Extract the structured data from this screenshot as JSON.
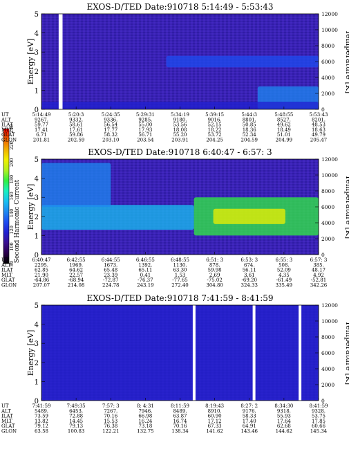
{
  "colorbar": {
    "label": "Second Harmonic Current",
    "ticks": [
      "80",
      "100",
      "120",
      "140",
      "160",
      "180",
      "200",
      "220",
      "240"
    ],
    "stops": [
      "#000000",
      "#2a004a",
      "#3a1090",
      "#2020d0",
      "#1e4cf0",
      "#1e88f0",
      "#18c0f0",
      "#18f0c0",
      "#30f040",
      "#b0f020",
      "#f0f000",
      "#f0b000",
      "#f06000",
      "#f00000"
    ]
  },
  "panels": [
    {
      "title": "EXOS-D/TED   Date:910718  5:14:49 - 5:53:43",
      "ylabel": "Energy [eV]",
      "y2label": "Temperature [K]",
      "yticks": [
        "0",
        "1",
        "2",
        "3",
        "4",
        "5"
      ],
      "y2ticks": [
        "0",
        "2000",
        "4000",
        "6000",
        "8000",
        "10000",
        "12000"
      ],
      "rows": {
        "labels": [
          "UT",
          "ALT",
          "ILAT",
          "MLT",
          "GLAT",
          "GLON"
        ],
        "cols": [
          [
            "5:14:49",
            "9267.",
            "59.77",
            "17.41",
            "6.71",
            "201.81"
          ],
          [
            "5:20:3",
            "9332.",
            "58.61",
            "17.61",
            "59.86",
            "202.59"
          ],
          [
            "5:24:35",
            "9336.",
            "56.54",
            "17.77",
            "58.32",
            "203.10"
          ],
          [
            "5:29:31",
            "9285.",
            "55.00",
            "17.93",
            "56.71",
            "203.54"
          ],
          [
            "5:34:19",
            "9180.",
            "53.56",
            "18.08",
            "55.20",
            "203.91"
          ],
          [
            "5:39:15",
            "9016.",
            "52.15",
            "18.22",
            "53.72",
            "204.25"
          ],
          [
            "5:44:3",
            "8801.",
            "50.85",
            "18.36",
            "52.34",
            "204.59"
          ],
          [
            "5:48:55",
            "8527.",
            "49.62",
            "18.49",
            "51.01",
            "204.99"
          ],
          [
            "5:53:43",
            "8201.",
            "48.53",
            "18.63",
            "49.79",
            "205.47"
          ]
        ]
      }
    },
    {
      "title": "EXOS-D/TED   Date:910718  6:40:47 - 6:57: 3",
      "ylabel": "Energy [eV]",
      "y2label": "Temperature [K]",
      "yticks": [
        "0",
        "1",
        "2",
        "3",
        "4",
        "5"
      ],
      "y2ticks": [
        "0",
        "2000",
        "4000",
        "6000",
        "8000",
        "10000",
        "12000"
      ],
      "rows": {
        "labels": [
          "UT",
          "ALT",
          "ILAT",
          "MLT",
          "GLAT",
          "GLON"
        ],
        "cols": [
          [
            "6:40:47",
            "2295.",
            "62.85",
            "21.90",
            "-64.86",
            "207.07"
          ],
          [
            "6:42:55",
            "1969.",
            "64.62",
            "22.57",
            "-68.94",
            "214.08"
          ],
          [
            "6:44:55",
            "1673.",
            "65.48",
            "23.39",
            "-72.87",
            "224.78"
          ],
          [
            "6:46:55",
            "1392.",
            "65.11",
            "0.41",
            "-76.37",
            "243.19"
          ],
          [
            "6:48:55",
            "1130.",
            "63.30",
            "1.53",
            "-77.65",
            "272.40"
          ],
          [
            "6:51: 3",
            "878.",
            "59.98",
            "2.69",
            "-75.02",
            "304.80"
          ],
          [
            "6:53: 3",
            "674.",
            "56.11",
            "3.61",
            "-69.20",
            "324.33"
          ],
          [
            "6:55: 3",
            "508.",
            "52.09",
            "4.35",
            "-61.49",
            "335.49"
          ],
          [
            "6:57: 3",
            "385.",
            "48.17",
            "4.92",
            "-52.81",
            "342.26"
          ]
        ]
      }
    },
    {
      "title": "EXOS-D/TED   Date:910718  7:41:59 - 8:41:59",
      "ylabel": "Energy [eV]",
      "y2label": "Temperature [K]",
      "yticks": [
        "0",
        "1",
        "2",
        "3",
        "4",
        "5"
      ],
      "y2ticks": [
        "0",
        "2000",
        "4000",
        "6000",
        "8000",
        "10000",
        "12000"
      ],
      "rows": {
        "labels": [
          "UT",
          "ALT",
          "ILAT",
          "MLT",
          "GLAT",
          "GLON"
        ],
        "cols": [
          [
            "7:41:59",
            "5489.",
            "73.59",
            "13.82",
            "79.12",
            "63.58"
          ],
          [
            "7:49:35",
            "6453.",
            "72.88",
            "14.45",
            "79.13",
            "100.83"
          ],
          [
            "7:57: 3",
            "7267.",
            "70.16",
            "15.53",
            "76.38",
            "122.21"
          ],
          [
            "8: 4:31",
            "7946.",
            "66.98",
            "16.24",
            "73.18",
            "132.75"
          ],
          [
            "8:11:59",
            "8489.",
            "63.87",
            "16.74",
            "70.16",
            "138.34"
          ],
          [
            "8:19:43",
            "8910.",
            "60.90",
            "17.12",
            "67.33",
            "141.62"
          ],
          [
            "8:27: 2",
            "9176.",
            "58.33",
            "17.40",
            "64.91",
            "143.46"
          ],
          [
            "8:34:30",
            "9318.",
            "55.93",
            "17.64",
            "62.68",
            "144.62"
          ],
          [
            "8:41:59",
            "9328.",
            "53.75",
            "17.85",
            "60.66",
            "145.34"
          ]
        ]
      }
    }
  ],
  "chart_data": [
    {
      "type": "heatmap",
      "title": "EXOS-D/TED   Date:910718  5:14:49 - 5:53:43",
      "ylabel": "Energy [eV]",
      "y2label": "Temperature [K]",
      "ylim": [
        0,
        5
      ],
      "y2lim": [
        0,
        12000
      ],
      "x": [
        "5:14:49",
        "5:20:3",
        "5:24:35",
        "5:29:31",
        "5:34:19",
        "5:39:15",
        "5:44:3",
        "5:48:55",
        "5:53:43"
      ],
      "bands": [
        {
          "x": [
            0.45,
            1.0
          ],
          "y": [
            2.2,
            2.8
          ],
          "level": 0.3
        },
        {
          "x": [
            0.78,
            1.0
          ],
          "y": [
            0.0,
            1.2
          ],
          "level": 0.35
        },
        {
          "x": [
            0.0,
            1.0
          ],
          "y": [
            0.0,
            0.4
          ],
          "level": 0.25
        }
      ],
      "gaps": [
        {
          "x": [
            0.062,
            0.076
          ],
          "y": [
            0,
            5
          ]
        }
      ],
      "colorbar": {
        "label": "Second Harmonic Current",
        "range": [
          80,
          240
        ]
      }
    },
    {
      "type": "heatmap",
      "title": "EXOS-D/TED   Date:910718  6:40:47 - 6:57: 3",
      "ylabel": "Energy [eV]",
      "y2label": "Temperature [K]",
      "ylim": [
        0,
        5
      ],
      "y2lim": [
        0,
        12000
      ],
      "x": [
        "6:40:47",
        "6:42:55",
        "6:44:55",
        "6:46:55",
        "6:48:55",
        "6:51: 3",
        "6:53: 3",
        "6:55: 3",
        "6:57: 3"
      ],
      "bands": [
        {
          "x": [
            0.0,
            0.55
          ],
          "y": [
            1.3,
            2.6
          ],
          "level": 0.45
        },
        {
          "x": [
            0.55,
            1.0
          ],
          "y": [
            1.0,
            3.0
          ],
          "level": 0.6
        },
        {
          "x": [
            0.62,
            0.88
          ],
          "y": [
            1.6,
            2.4
          ],
          "level": 0.75
        },
        {
          "x": [
            0.0,
            0.25
          ],
          "y": [
            2.5,
            4.8
          ],
          "level": 0.35
        }
      ],
      "gaps": [],
      "colorbar": {
        "label": "Second Harmonic Current",
        "range": [
          80,
          240
        ]
      }
    },
    {
      "type": "heatmap",
      "title": "EXOS-D/TED   Date:910718  7:41:59 - 8:41:59",
      "ylabel": "Energy [eV]",
      "y2label": "Temperature [K]",
      "ylim": [
        0,
        5
      ],
      "y2lim": [
        0,
        12000
      ],
      "x": [
        "7:41:59",
        "7:49:35",
        "7:57: 3",
        "8: 4:31",
        "8:11:59",
        "8:19:43",
        "8:27: 2",
        "8:34:30",
        "8:41:59"
      ],
      "bands": [
        {
          "x": [
            0.0,
            1.0
          ],
          "y": [
            0.0,
            5.0
          ],
          "level": 0.25
        }
      ],
      "gaps": [
        {
          "x": [
            0.546,
            0.556
          ],
          "y": [
            0,
            5
          ]
        },
        {
          "x": [
            0.762,
            0.772
          ],
          "y": [
            0,
            5
          ]
        },
        {
          "x": [
            0.928,
            0.938
          ],
          "y": [
            0,
            5
          ]
        }
      ],
      "colorbar": {
        "label": "Second Harmonic Current",
        "range": [
          80,
          240
        ]
      }
    }
  ]
}
